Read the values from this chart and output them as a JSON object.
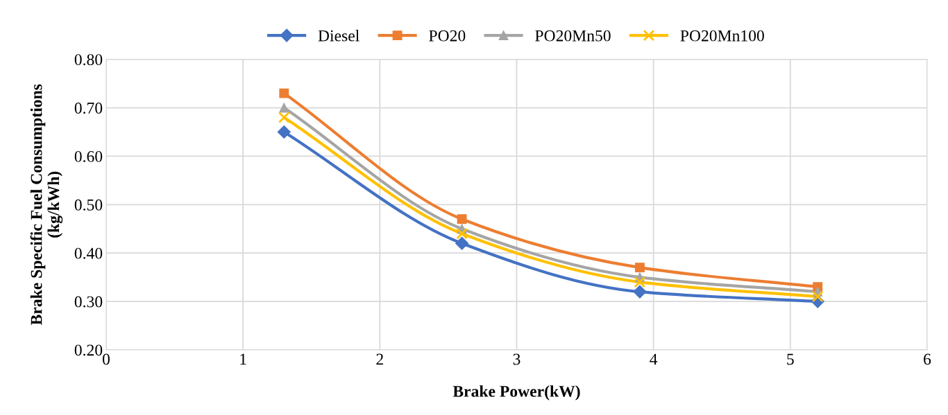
{
  "chart_data": {
    "type": "line",
    "xlabel": "Brake Power(kW)",
    "ylabel": "Brake Specific Fuel Consumptions\n(kg/kWh)",
    "x": [
      1.3,
      2.6,
      3.9,
      5.2
    ],
    "series": [
      {
        "name": "Diesel",
        "color": "#4472c4",
        "marker": "diamond",
        "values": [
          0.65,
          0.42,
          0.32,
          0.3
        ]
      },
      {
        "name": "PO20",
        "color": "#ed7d31",
        "marker": "square",
        "values": [
          0.73,
          0.47,
          0.37,
          0.33
        ]
      },
      {
        "name": "PO20Mn50",
        "color": "#a5a5a5",
        "marker": "triangle",
        "values": [
          0.7,
          0.45,
          0.35,
          0.32
        ]
      },
      {
        "name": "PO20Mn100",
        "color": "#ffc000",
        "marker": "cross",
        "values": [
          0.68,
          0.44,
          0.34,
          0.31
        ]
      }
    ],
    "xlim": [
      0,
      6
    ],
    "xticks": [
      0,
      1,
      2,
      3,
      4,
      5,
      6
    ],
    "ylim": [
      0.2,
      0.8
    ],
    "yticks": [
      {
        "value": 0.2,
        "label": "0.20"
      },
      {
        "value": 0.3,
        "label": "0.30"
      },
      {
        "value": 0.4,
        "label": "0.40"
      },
      {
        "value": 0.5,
        "label": "0.50"
      },
      {
        "value": 0.6,
        "label": "0.60"
      },
      {
        "value": 0.7,
        "label": "0.70"
      },
      {
        "value": 0.8,
        "label": "0.80"
      }
    ],
    "grid": true,
    "legend": "top",
    "line_style": "solid"
  }
}
